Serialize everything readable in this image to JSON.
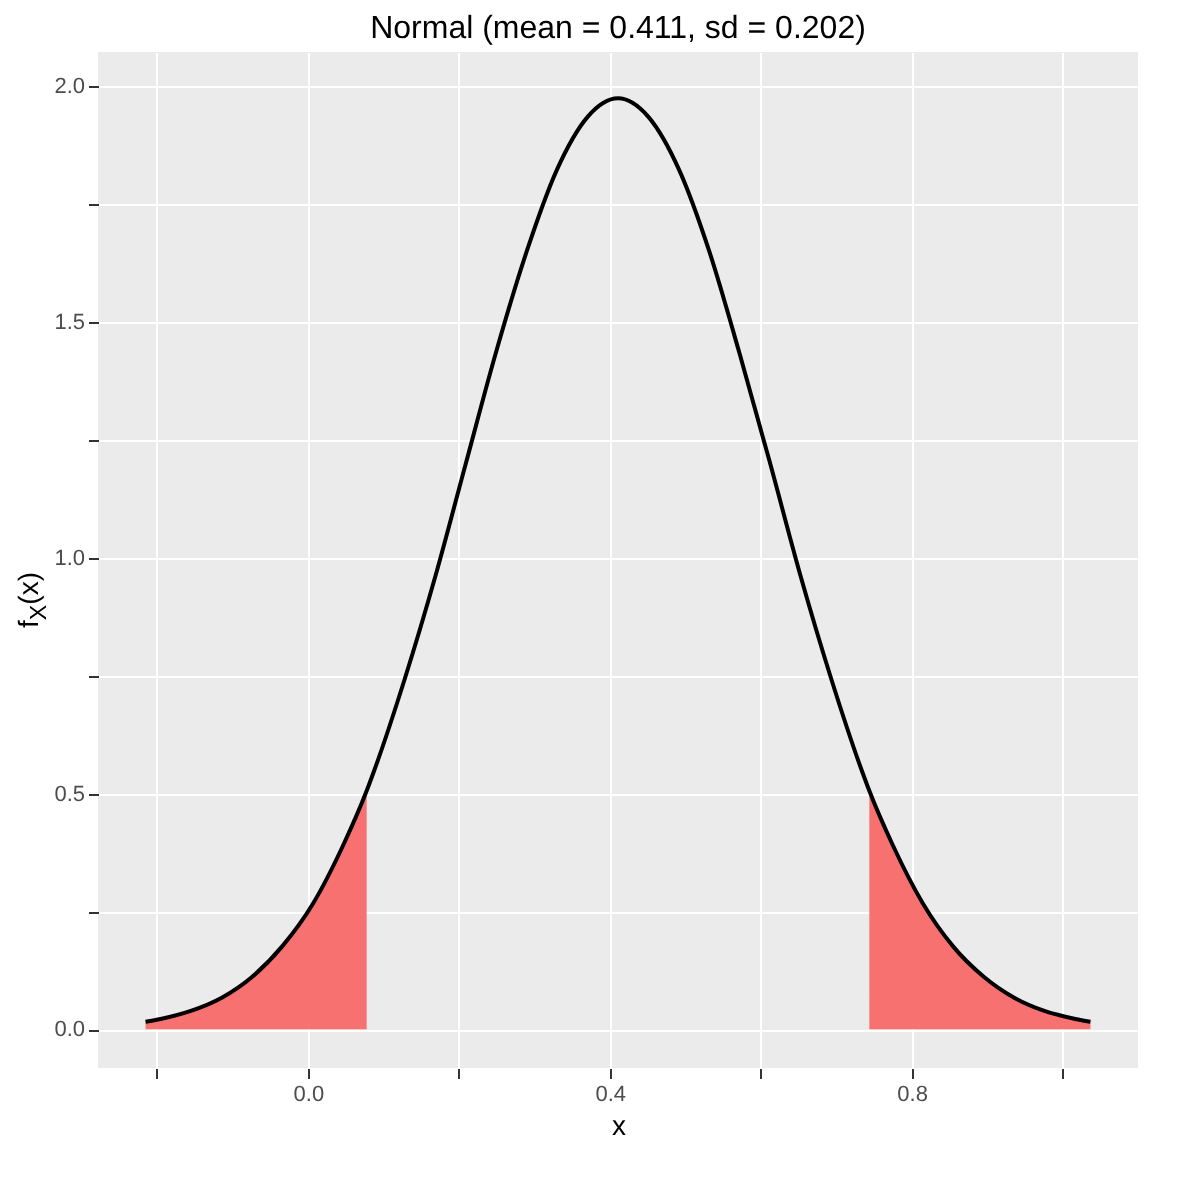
{
  "chart_data": {
    "type": "line",
    "title": "Normal (mean = 0.411, sd = 0.202)",
    "xlabel": "x",
    "ylabel": "f$_{X}$(x)",
    "xlim": [
      -0.278,
      1.1
    ],
    "ylim": [
      -0.082,
      2.073
    ],
    "xticks": [
      {
        "value": -0.2,
        "label": null
      },
      {
        "value": 0,
        "label": "0.0"
      },
      {
        "value": 0.2,
        "label": null
      },
      {
        "value": 0.4,
        "label": "0.4"
      },
      {
        "value": 0.6,
        "label": null
      },
      {
        "value": 0.8,
        "label": "0.8"
      },
      {
        "value": 1.0,
        "label": null
      }
    ],
    "yticks": [
      {
        "value": 0,
        "label": "0.0"
      },
      {
        "value": 0.25,
        "label": null
      },
      {
        "value": 0.5,
        "label": "0.5"
      },
      {
        "value": 0.75,
        "label": null
      },
      {
        "value": 1.0,
        "label": "1.0"
      },
      {
        "value": 1.25,
        "label": null
      },
      {
        "value": 1.5,
        "label": "1.5"
      },
      {
        "value": 1.75,
        "label": null
      },
      {
        "value": 2.0,
        "label": "2.0"
      }
    ],
    "grid": true,
    "series": [
      {
        "type": "area",
        "color": "#f87171",
        "x": [
          -0.215,
          -0.195,
          -0.155,
          -0.114,
          -0.074,
          -0.034,
          0.007,
          0.047,
          0.078
        ],
        "values": [
          0.016,
          0.022,
          0.039,
          0.067,
          0.111,
          0.176,
          0.267,
          0.391,
          0.506
        ]
      },
      {
        "type": "area",
        "color": "#f87171",
        "x": [
          0.744,
          0.775,
          0.815,
          0.855,
          0.896,
          0.936,
          0.976,
          1.017,
          1.037
        ],
        "values": [
          0.506,
          0.391,
          0.267,
          0.176,
          0.111,
          0.067,
          0.039,
          0.022,
          0.016
        ]
      },
      {
        "color": "#000000",
        "x": [
          -0.215,
          -0.195,
          -0.155,
          -0.114,
          -0.074,
          -0.034,
          0.007,
          0.047,
          0.078,
          0.088,
          0.128,
          0.169,
          0.209,
          0.249,
          0.29,
          0.33,
          0.371,
          0.411,
          0.451,
          0.492,
          0.532,
          0.572,
          0.613,
          0.653,
          0.694,
          0.734,
          0.744,
          0.775,
          0.815,
          0.855,
          0.896,
          0.936,
          0.976,
          1.017,
          1.037
        ],
        "values": [
          0.016,
          0.022,
          0.039,
          0.067,
          0.111,
          0.176,
          0.267,
          0.391,
          0.506,
          0.549,
          0.741,
          0.961,
          1.198,
          1.434,
          1.65,
          1.823,
          1.936,
          1.975,
          1.936,
          1.823,
          1.65,
          1.434,
          1.198,
          0.961,
          0.741,
          0.549,
          0.506,
          0.391,
          0.267,
          0.176,
          0.111,
          0.067,
          0.039,
          0.022,
          0.016
        ]
      }
    ]
  }
}
